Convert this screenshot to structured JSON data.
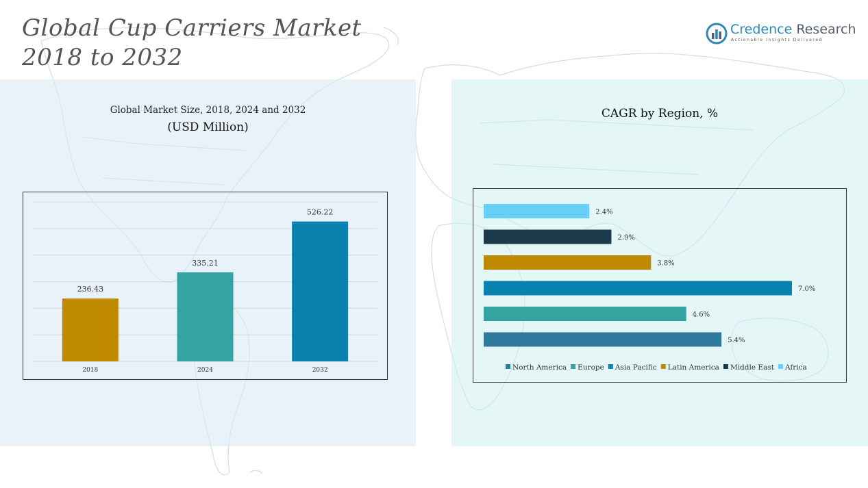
{
  "page": {
    "title_line1": "Global Cup Carriers Market",
    "title_line2": "2018 to 2032"
  },
  "logo": {
    "name_part1": "Credence",
    "name_part2": "Research",
    "tagline": "Actionable Insights Delivered",
    "colors": {
      "primary": "#2d87b5",
      "secondary": "#555f6b"
    }
  },
  "left_panel": {
    "subtitle": "Global Market Size, 2018, 2024 and 2032",
    "unit": "(USD Million)"
  },
  "right_panel": {
    "title": "CAGR by Region, %"
  },
  "chart_data": [
    {
      "type": "bar",
      "categories": [
        "2018",
        "2024",
        "2032"
      ],
      "values": [
        236.43,
        335.21,
        526.22
      ],
      "value_labels": [
        "236.43",
        "335.21",
        "526.22"
      ],
      "colors": [
        "#c08a00",
        "#33a3a3",
        "#0a82b0"
      ],
      "ylim": [
        0,
        600
      ],
      "grid": true,
      "title": "Global Market Size, 2018, 2024 and 2032",
      "ylabel": "(USD Million)"
    },
    {
      "type": "bar",
      "orientation": "horizontal",
      "categories": [
        "North America",
        "Europe",
        "Asia Pacific",
        "Latin America",
        "Middle East",
        "Africa"
      ],
      "values": [
        5.4,
        4.6,
        7.0,
        3.8,
        2.9,
        2.4
      ],
      "value_labels": [
        "5.4%",
        "4.6%",
        "7.0%",
        "3.8%",
        "2.9%",
        "2.4%"
      ],
      "colors": [
        "#2e7a9b",
        "#35a3a0",
        "#0a82b0",
        "#c08a00",
        "#1b3a4a",
        "#66d0f7"
      ],
      "xlim": [
        0,
        7.0
      ],
      "grid": false,
      "legend": "bottom",
      "title": "CAGR by Region, %"
    }
  ]
}
